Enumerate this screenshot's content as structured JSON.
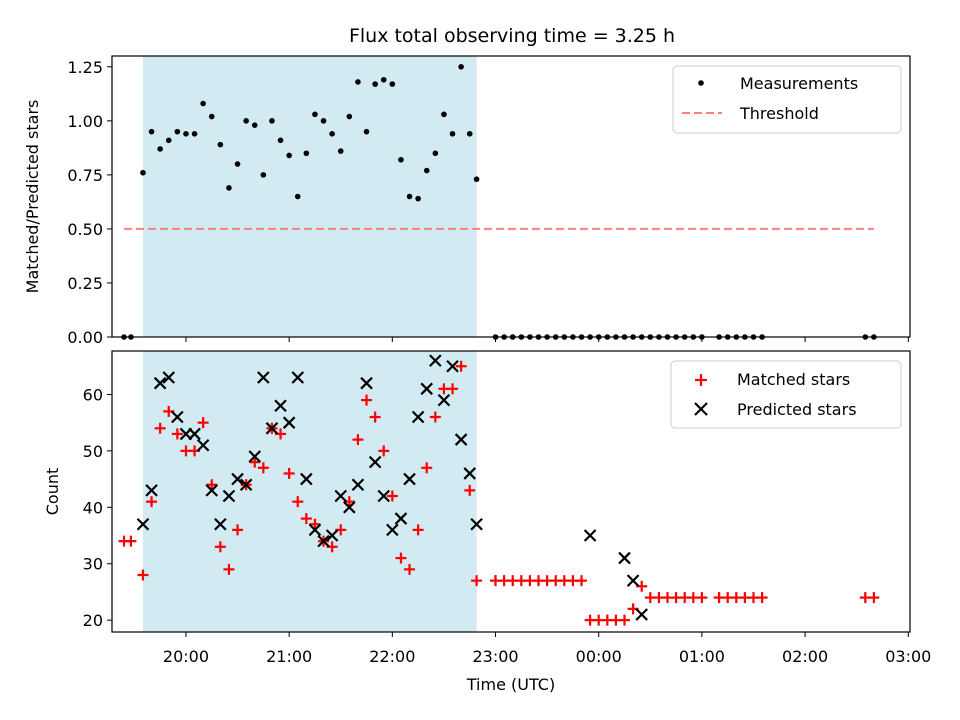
{
  "chart_data": [
    {
      "type": "scatter",
      "title": "Flux total observing time = 3.25 h",
      "xlabel": "",
      "ylabel": "Matched/Predicted stars",
      "ylim": [
        0,
        1.3
      ],
      "xlim": [
        "19:17",
        "03:01"
      ],
      "yticks": [
        "0.00",
        "0.25",
        "0.50",
        "0.75",
        "1.00",
        "1.25"
      ],
      "ytick_values": [
        0,
        0.25,
        0.5,
        0.75,
        1.0,
        1.25
      ],
      "shaded_span": {
        "start": "19:35",
        "end": "22:49",
        "color": "#add8e6"
      },
      "legend_position": "upper right",
      "series": [
        {
          "name": "Measurements",
          "marker": "dot",
          "color": "#000000",
          "x": [
            "19:24",
            "19:28",
            "19:35",
            "19:40",
            "19:45",
            "19:50",
            "19:55",
            "20:00",
            "20:05",
            "20:10",
            "20:15",
            "20:20",
            "20:25",
            "20:30",
            "20:35",
            "20:40",
            "20:45",
            "20:50",
            "20:55",
            "21:00",
            "21:05",
            "21:10",
            "21:15",
            "21:20",
            "21:25",
            "21:30",
            "21:35",
            "21:40",
            "21:45",
            "21:50",
            "21:55",
            "22:00",
            "22:05",
            "22:10",
            "22:15",
            "22:20",
            "22:25",
            "22:30",
            "22:35",
            "22:40",
            "22:45",
            "22:49",
            "23:00",
            "23:05",
            "23:10",
            "23:15",
            "23:20",
            "23:25",
            "23:30",
            "23:35",
            "23:40",
            "23:45",
            "23:50",
            "23:55",
            "00:00",
            "00:05",
            "00:10",
            "00:15",
            "00:20",
            "00:25",
            "00:30",
            "00:35",
            "00:40",
            "00:45",
            "00:50",
            "00:55",
            "01:00",
            "01:10",
            "01:15",
            "01:20",
            "01:25",
            "01:30",
            "01:35",
            "02:35",
            "02:40"
          ],
          "y": [
            0,
            0,
            0.76,
            0.95,
            0.87,
            0.91,
            0.95,
            0.94,
            0.94,
            1.08,
            1.02,
            0.89,
            0.69,
            0.8,
            1.0,
            0.98,
            0.75,
            1.0,
            0.91,
            0.84,
            0.65,
            0.85,
            1.03,
            1.0,
            0.94,
            0.86,
            1.02,
            1.18,
            0.95,
            1.17,
            1.19,
            1.17,
            0.82,
            0.65,
            0.64,
            0.77,
            0.85,
            1.03,
            0.94,
            1.25,
            0.94,
            0.73,
            0,
            0,
            0,
            0,
            0,
            0,
            0,
            0,
            0,
            0,
            0,
            0,
            0,
            0,
            0,
            0,
            0,
            0,
            0,
            0,
            0,
            0,
            0,
            0,
            0,
            0,
            0,
            0,
            0,
            0,
            0,
            0,
            0
          ]
        },
        {
          "name": "Threshold",
          "style": "dashed",
          "color": "#ff7f7f",
          "x": [
            "19:24",
            "02:40"
          ],
          "y": [
            0.5,
            0.5
          ]
        }
      ]
    },
    {
      "type": "scatter",
      "title": "",
      "xlabel": "Time (UTC)",
      "ylabel": "Count",
      "ylim": [
        17.9,
        67.7
      ],
      "xlim": [
        "19:17",
        "03:01"
      ],
      "yticks": [
        "20",
        "30",
        "40",
        "50",
        "60"
      ],
      "ytick_values": [
        20,
        30,
        40,
        50,
        60
      ],
      "xticks": [
        "20:00",
        "21:00",
        "22:00",
        "23:00",
        "00:00",
        "01:00",
        "02:00",
        "03:00"
      ],
      "shaded_span": {
        "start": "19:35",
        "end": "22:49",
        "color": "#add8e6"
      },
      "legend_position": "upper right",
      "series": [
        {
          "name": "Matched stars",
          "marker": "plus",
          "color": "#ff0000",
          "x": [
            "19:24",
            "19:28",
            "19:35",
            "19:40",
            "19:45",
            "19:50",
            "19:55",
            "20:00",
            "20:05",
            "20:10",
            "20:15",
            "20:20",
            "20:25",
            "20:30",
            "20:35",
            "20:40",
            "20:45",
            "20:50",
            "20:55",
            "21:00",
            "21:05",
            "21:10",
            "21:15",
            "21:20",
            "21:25",
            "21:30",
            "21:35",
            "21:40",
            "21:45",
            "21:50",
            "21:55",
            "22:00",
            "22:05",
            "22:10",
            "22:15",
            "22:20",
            "22:25",
            "22:30",
            "22:35",
            "22:40",
            "22:45",
            "22:49",
            "23:00",
            "23:05",
            "23:10",
            "23:15",
            "23:20",
            "23:25",
            "23:30",
            "23:35",
            "23:40",
            "23:45",
            "23:50",
            "23:55",
            "00:00",
            "00:05",
            "00:10",
            "00:15",
            "00:20",
            "00:25",
            "00:30",
            "00:35",
            "00:40",
            "00:45",
            "00:50",
            "00:55",
            "01:00",
            "01:10",
            "01:15",
            "01:20",
            "01:25",
            "01:30",
            "01:35",
            "02:35",
            "02:40"
          ],
          "y": [
            34,
            34,
            28,
            41,
            54,
            57,
            53,
            50,
            50,
            55,
            44,
            33,
            29,
            36,
            44,
            48,
            47,
            54,
            53,
            46,
            41,
            38,
            37,
            34,
            33,
            36,
            41,
            52,
            59,
            56,
            50,
            42,
            31,
            29,
            36,
            47,
            56,
            61,
            61,
            65,
            43,
            27,
            27,
            27,
            27,
            27,
            27,
            27,
            27,
            27,
            27,
            27,
            27,
            20,
            20,
            20,
            20,
            20,
            22,
            26,
            24,
            24,
            24,
            24,
            24,
            24,
            24,
            24,
            24,
            24,
            24,
            24,
            24,
            24,
            24
          ]
        },
        {
          "name": "Predicted stars",
          "marker": "x",
          "color": "#000000",
          "x": [
            "19:35",
            "19:40",
            "19:45",
            "19:50",
            "19:55",
            "20:00",
            "20:05",
            "20:10",
            "20:15",
            "20:20",
            "20:25",
            "20:30",
            "20:35",
            "20:40",
            "20:45",
            "20:50",
            "20:55",
            "21:00",
            "21:05",
            "21:10",
            "21:15",
            "21:20",
            "21:25",
            "21:30",
            "21:35",
            "21:40",
            "21:45",
            "21:50",
            "21:55",
            "22:00",
            "22:05",
            "22:10",
            "22:15",
            "22:20",
            "22:25",
            "22:30",
            "22:35",
            "22:40",
            "22:45",
            "22:49",
            "23:55",
            "00:15",
            "00:20",
            "00:25"
          ],
          "y": [
            37,
            43,
            62,
            63,
            56,
            53,
            53,
            51,
            43,
            37,
            42,
            45,
            44,
            49,
            63,
            54,
            58,
            55,
            63,
            45,
            36,
            34,
            35,
            42,
            40,
            44,
            62,
            48,
            42,
            36,
            38,
            45,
            56,
            61,
            66,
            59,
            65,
            52,
            46,
            37,
            35,
            31,
            27,
            21
          ]
        }
      ]
    }
  ]
}
